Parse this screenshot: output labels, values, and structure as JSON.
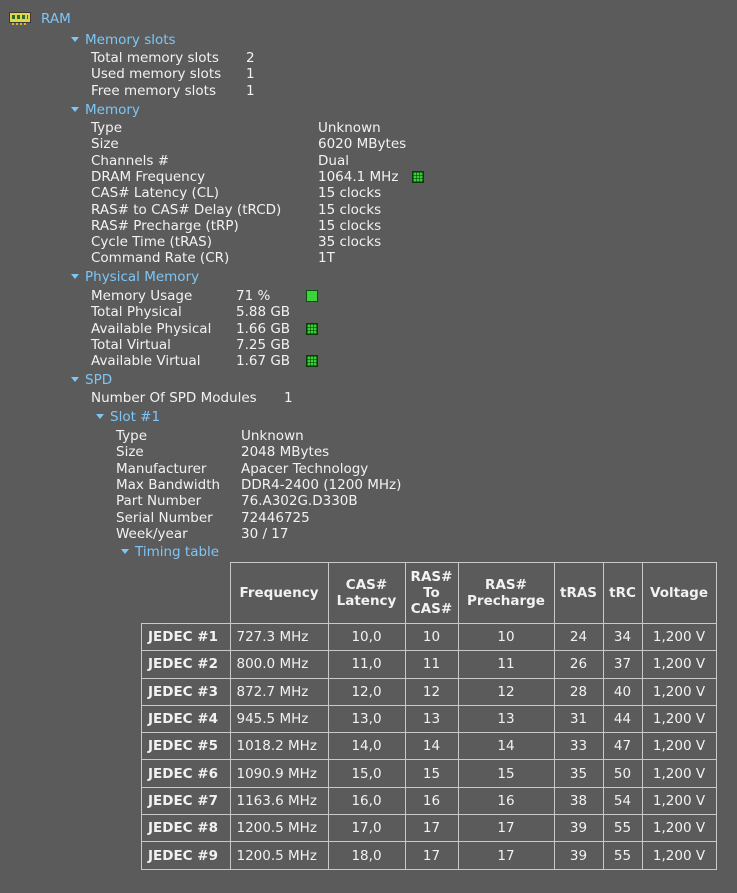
{
  "root": {
    "label": "RAM",
    "icon": "ram-module-icon"
  },
  "memory_slots": {
    "header": "Memory slots",
    "rows": [
      {
        "label": "Total memory slots",
        "value": "2"
      },
      {
        "label": "Used memory slots",
        "value": "1"
      },
      {
        "label": "Free memory slots",
        "value": "1"
      }
    ]
  },
  "memory": {
    "header": "Memory",
    "rows": [
      {
        "label": "Type",
        "value": "Unknown"
      },
      {
        "label": "Size",
        "value": "6020 MBytes"
      },
      {
        "label": "Channels #",
        "value": "Dual"
      },
      {
        "label": "DRAM Frequency",
        "value": "1064.1 MHz",
        "icon": "green-gauge-icon"
      },
      {
        "label": "CAS# Latency (CL)",
        "value": "15 clocks"
      },
      {
        "label": "RAS# to CAS# Delay (tRCD)",
        "value": "15 clocks"
      },
      {
        "label": "RAS# Precharge (tRP)",
        "value": "15 clocks"
      },
      {
        "label": "Cycle Time (tRAS)",
        "value": "35 clocks"
      },
      {
        "label": "Command Rate (CR)",
        "value": "1T"
      }
    ]
  },
  "physical_memory": {
    "header": "Physical Memory",
    "rows": [
      {
        "label": "Memory Usage",
        "value": "71 %",
        "icon": "green-status-icon"
      },
      {
        "label": "Total Physical",
        "value": "5.88 GB"
      },
      {
        "label": "Available Physical",
        "value": "1.66 GB",
        "icon": "green-gauge-icon"
      },
      {
        "label": "Total Virtual",
        "value": "7.25 GB"
      },
      {
        "label": "Available Virtual",
        "value": "1.67 GB",
        "icon": "green-gauge-icon"
      }
    ]
  },
  "spd": {
    "header": "SPD",
    "modules_label": "Number Of SPD Modules",
    "modules_value": "1",
    "slot": {
      "header": "Slot #1",
      "rows": [
        {
          "label": "Type",
          "value": "Unknown"
        },
        {
          "label": "Size",
          "value": "2048 MBytes"
        },
        {
          "label": "Manufacturer",
          "value": "Apacer Technology"
        },
        {
          "label": "Max Bandwidth",
          "value": "DDR4-2400 (1200 MHz)"
        },
        {
          "label": "Part Number",
          "value": "76.A302G.D330B"
        },
        {
          "label": "Serial Number",
          "value": "72446725"
        },
        {
          "label": "Week/year",
          "value": "30 / 17"
        }
      ],
      "timing_header": "Timing table"
    }
  },
  "timing_table": {
    "columns": [
      "Frequency",
      "CAS#\nLatency",
      "RAS#\nTo\nCAS#",
      "RAS#\nPrecharge",
      "tRAS",
      "tRC",
      "Voltage"
    ],
    "rows": [
      [
        "JEDEC #1",
        "727.3 MHz",
        "10,0",
        "10",
        "10",
        "24",
        "34",
        "1,200 V"
      ],
      [
        "JEDEC #2",
        "800.0 MHz",
        "11,0",
        "11",
        "11",
        "26",
        "37",
        "1,200 V"
      ],
      [
        "JEDEC #3",
        "872.7 MHz",
        "12,0",
        "12",
        "12",
        "28",
        "40",
        "1,200 V"
      ],
      [
        "JEDEC #4",
        "945.5 MHz",
        "13,0",
        "13",
        "13",
        "31",
        "44",
        "1,200 V"
      ],
      [
        "JEDEC #5",
        "1018.2 MHz",
        "14,0",
        "14",
        "14",
        "33",
        "47",
        "1,200 V"
      ],
      [
        "JEDEC #6",
        "1090.9 MHz",
        "15,0",
        "15",
        "15",
        "35",
        "50",
        "1,200 V"
      ],
      [
        "JEDEC #7",
        "1163.6 MHz",
        "16,0",
        "16",
        "16",
        "38",
        "54",
        "1,200 V"
      ],
      [
        "JEDEC #8",
        "1200.5 MHz",
        "17,0",
        "17",
        "17",
        "39",
        "55",
        "1,200 V"
      ],
      [
        "JEDEC #9",
        "1200.5 MHz",
        "18,0",
        "17",
        "17",
        "39",
        "55",
        "1,200 V"
      ]
    ]
  }
}
